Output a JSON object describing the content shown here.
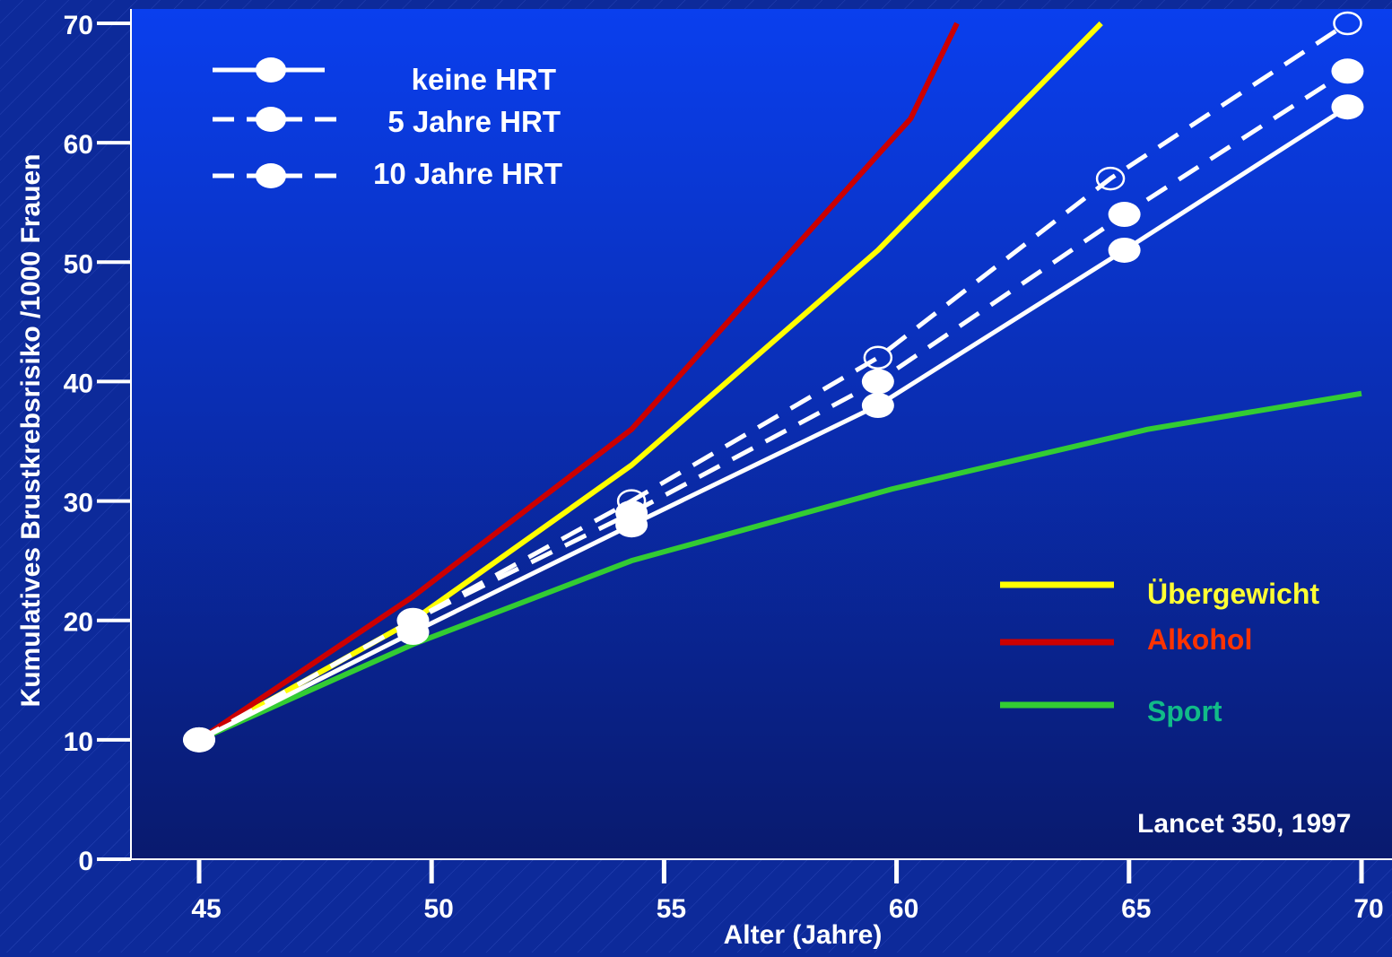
{
  "chart_data": {
    "type": "line",
    "xlabel": "Alter (Jahre)",
    "ylabel": "Kumulatives Brustkrebsrisiko /1000 Frauen",
    "xlim": [
      45,
      70
    ],
    "ylim": [
      0,
      70
    ],
    "x_ticks": [
      45,
      50,
      55,
      60,
      65,
      70
    ],
    "y_ticks": [
      0,
      10,
      20,
      30,
      40,
      50,
      60,
      70
    ],
    "legend_hrt": [
      "keine HRT",
      "5 Jahre HRT",
      "10 Jahre HRT"
    ],
    "legend_factors": [
      "Übergewicht",
      "Alkohol",
      "Sport"
    ],
    "source_note": "Lancet 350, 1997",
    "series": [
      {
        "name": "keine HRT",
        "style": "solid",
        "marker": "filled",
        "color": "#ffffff",
        "x": [
          45,
          49.6,
          54.3,
          59.6,
          64.9,
          69.7
        ],
        "y": [
          10,
          19,
          28,
          38,
          51,
          63
        ]
      },
      {
        "name": "5 Jahre HRT",
        "style": "dashed",
        "marker": "filled",
        "color": "#ffffff",
        "x": [
          45,
          49.6,
          54.3,
          59.6,
          64.9,
          69.7
        ],
        "y": [
          10,
          20,
          29,
          40,
          54,
          66
        ]
      },
      {
        "name": "10 Jahre HRT",
        "style": "dashed",
        "marker": "open",
        "color": "#ffffff",
        "x": [
          45,
          49.6,
          54.3,
          59.6,
          64.6,
          69.7
        ],
        "y": [
          10,
          20,
          30,
          42,
          57,
          70
        ]
      },
      {
        "name": "Übergewicht",
        "style": "solid",
        "marker": "none",
        "color": "#ffff00",
        "x": [
          45,
          49.6,
          54.3,
          59.6,
          64.4
        ],
        "y": [
          10,
          20,
          33,
          51,
          70
        ]
      },
      {
        "name": "Alkohol",
        "style": "solid",
        "marker": "none",
        "color": "#cc0000",
        "x": [
          45,
          49.6,
          54.3,
          59.6,
          60.3,
          61.3
        ],
        "y": [
          10,
          22,
          36,
          59,
          62,
          70
        ]
      },
      {
        "name": "Sport",
        "style": "solid",
        "marker": "none",
        "color": "#33cc33",
        "x": [
          45,
          49.6,
          54.3,
          59.9,
          65.4,
          70
        ],
        "y": [
          10,
          18,
          25,
          31,
          36,
          39
        ]
      }
    ],
    "colors": {
      "outer_bg": "#0d2a9a",
      "plot_top": "#0a3fee",
      "plot_bottom": "#091a6e",
      "hrt_line": "#ffffff",
      "uebergewicht_label": "#ffff33",
      "alkohol_label": "#ff3300",
      "sport_label": "#11bb88"
    }
  }
}
